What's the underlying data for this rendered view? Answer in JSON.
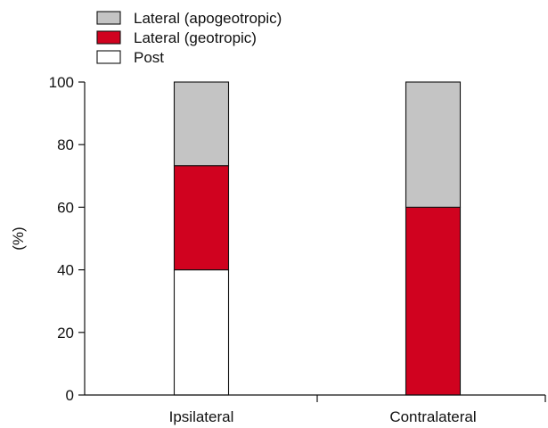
{
  "chart_data": {
    "type": "bar",
    "stacked": true,
    "title": "",
    "xlabel": "",
    "ylabel": "(%)",
    "ylim": [
      0,
      100
    ],
    "yticks": [
      0,
      20,
      40,
      60,
      80,
      100
    ],
    "categories": [
      "Ipsilateral",
      "Contralateral"
    ],
    "series": [
      {
        "name": "Post",
        "values": [
          40,
          0
        ],
        "color": "#ffffff"
      },
      {
        "name": "Lateral (geotropic)",
        "values": [
          33.3,
          60
        ],
        "color": "#d0021f"
      },
      {
        "name": "Lateral (apogeotropic)",
        "values": [
          26.7,
          40
        ],
        "color": "#c4c4c4"
      }
    ],
    "legend": {
      "position": "top-left",
      "order": [
        "Lateral (apogeotropic)",
        "Lateral (geotropic)",
        "Post"
      ]
    },
    "grid": false
  }
}
